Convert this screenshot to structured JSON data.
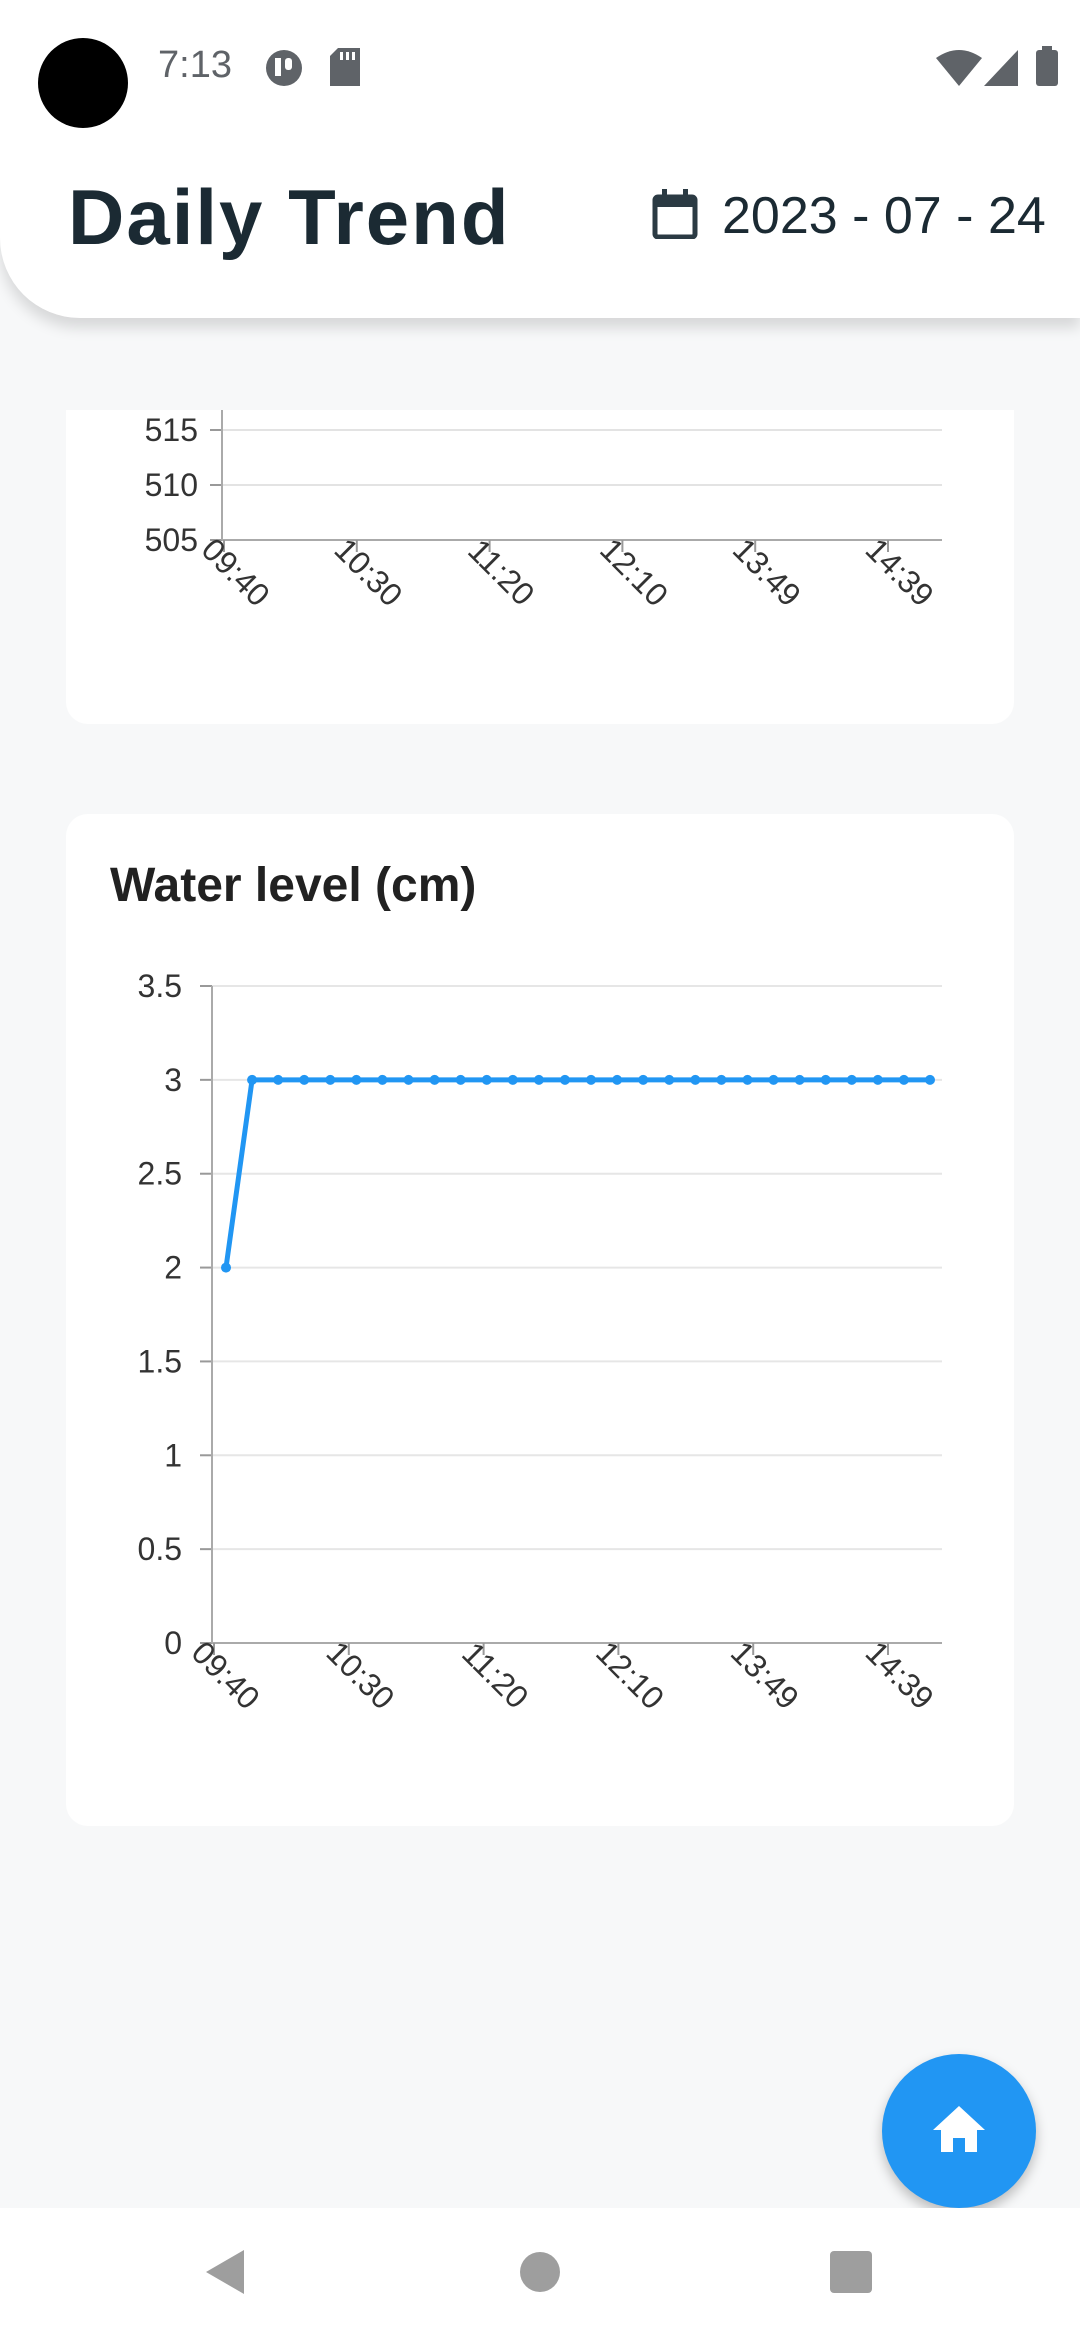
{
  "status_bar": {
    "time": "7:13",
    "icons": [
      "camera-cutout",
      "app-notification-icon",
      "sd-card-icon",
      "wifi-icon",
      "signal-icon",
      "battery-icon"
    ]
  },
  "header": {
    "title": "Daily Trend",
    "date": "2023 - 07 - 24",
    "date_icon": "calendar-icon"
  },
  "colors": {
    "accent": "#2196f3",
    "title_text": "#1b2a33",
    "background": "#f7f8f9"
  },
  "chart_data": [
    {
      "type": "line",
      "title": "",
      "partial": true,
      "y_ticks": [
        "505",
        "510",
        "515"
      ],
      "x_ticks": [
        "09:40",
        "10:30",
        "11:20",
        "12:10",
        "13:49",
        "14:39"
      ],
      "grid": true
    },
    {
      "type": "line",
      "title": "Water level (cm)",
      "x_ticks": [
        "09:40",
        "10:30",
        "11:20",
        "12:10",
        "13:49",
        "14:39"
      ],
      "y_ticks": [
        "0",
        "0.5",
        "1",
        "1.5",
        "2",
        "2.5",
        "3",
        "3.5"
      ],
      "ylim": [
        0,
        3.5
      ],
      "grid": true,
      "color": "#2196f3",
      "series": [
        {
          "values": [
            2,
            3,
            3,
            3,
            3,
            3,
            3,
            3,
            3,
            3,
            3,
            3,
            3,
            3,
            3,
            3,
            3,
            3,
            3,
            3,
            3,
            3,
            3,
            3,
            3,
            3,
            3,
            3
          ]
        }
      ]
    }
  ],
  "fab": {
    "icon": "home-icon"
  },
  "nav_bar": {
    "icons": [
      "back-icon",
      "home-nav-icon",
      "recents-icon"
    ]
  }
}
